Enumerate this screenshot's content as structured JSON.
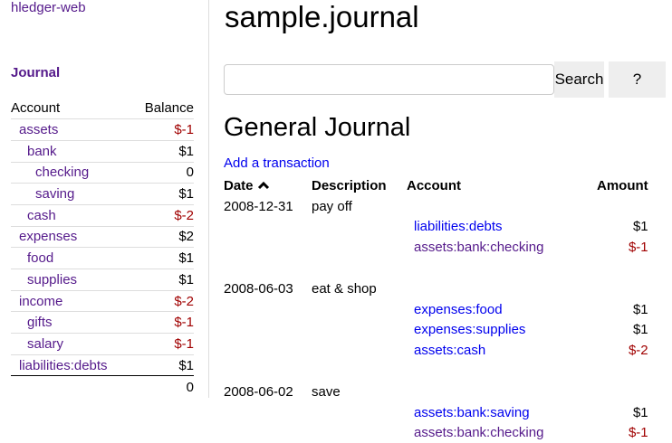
{
  "sidebar": {
    "brand": "hledger-web",
    "journal_link": "Journal",
    "headers": {
      "account": "Account",
      "balance": "Balance"
    },
    "accounts": [
      {
        "name": "assets",
        "depth": 0,
        "balance": "$-1",
        "negative": true
      },
      {
        "name": "bank",
        "depth": 1,
        "balance": "$1",
        "negative": false
      },
      {
        "name": "checking",
        "depth": 2,
        "balance": "0",
        "negative": false
      },
      {
        "name": "saving",
        "depth": 2,
        "balance": "$1",
        "negative": false
      },
      {
        "name": "cash",
        "depth": 1,
        "balance": "$-2",
        "negative": true
      },
      {
        "name": "expenses",
        "depth": 0,
        "balance": "$2",
        "negative": false
      },
      {
        "name": "food",
        "depth": 1,
        "balance": "$1",
        "negative": false
      },
      {
        "name": "supplies",
        "depth": 1,
        "balance": "$1",
        "negative": false
      },
      {
        "name": "income",
        "depth": 0,
        "balance": "$-2",
        "negative": true
      },
      {
        "name": "gifts",
        "depth": 1,
        "balance": "$-1",
        "negative": true
      },
      {
        "name": "salary",
        "depth": 1,
        "balance": "$-1",
        "negative": true
      },
      {
        "name": "liabilities:debts",
        "depth": 0,
        "balance": "$1",
        "negative": false
      }
    ],
    "total": "0"
  },
  "main": {
    "title": "sample.journal",
    "search": {
      "value": "",
      "placeholder": "",
      "button": "Search",
      "help": "?"
    },
    "heading": "General Journal",
    "add_link": "Add a transaction",
    "columns": {
      "date": "Date",
      "sort_icon": "chevron-up-icon",
      "description": "Description",
      "account": "Account",
      "amount": "Amount"
    },
    "transactions": [
      {
        "date": "2008-12-31",
        "description": "pay off",
        "postings": [
          {
            "account": "liabilities:debts",
            "amount": "$1",
            "negative": false,
            "visited": false
          },
          {
            "account": "assets:bank:checking",
            "amount": "$-1",
            "negative": true,
            "visited": true
          }
        ]
      },
      {
        "date": "2008-06-03",
        "description": "eat & shop",
        "postings": [
          {
            "account": "expenses:food",
            "amount": "$1",
            "negative": false,
            "visited": false
          },
          {
            "account": "expenses:supplies",
            "amount": "$1",
            "negative": false,
            "visited": false
          },
          {
            "account": "assets:cash",
            "amount": "$-2",
            "negative": true,
            "visited": false
          }
        ]
      },
      {
        "date": "2008-06-02",
        "description": "save",
        "postings": [
          {
            "account": "assets:bank:saving",
            "amount": "$1",
            "negative": false,
            "visited": false
          },
          {
            "account": "assets:bank:checking",
            "amount": "$-1",
            "negative": true,
            "visited": true
          }
        ]
      }
    ]
  },
  "colors": {
    "visited_link": "#551a8b",
    "link": "#0000ee",
    "negative": "#a00000"
  }
}
